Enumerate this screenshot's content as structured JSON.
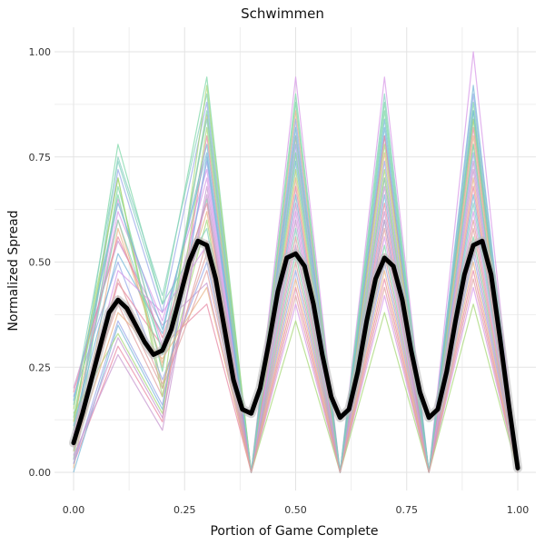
{
  "chart_data": {
    "type": "line",
    "title": "Schwimmen",
    "xlabel": "Portion of Game Complete",
    "ylabel": "Normalized Spread",
    "xlim": [
      0,
      1
    ],
    "ylim": [
      0,
      1
    ],
    "x_ticks": [
      "0.00",
      "0.25",
      "0.50",
      "0.75",
      "1.00"
    ],
    "y_ticks": [
      "0.00",
      "0.25",
      "0.50",
      "0.75",
      "1.00"
    ],
    "grid": true,
    "legend": "none",
    "x": [
      0.0,
      0.1,
      0.2,
      0.3,
      0.4,
      0.5,
      0.6,
      0.7,
      0.8,
      0.9,
      1.0
    ],
    "individual_series_count": 30,
    "individual_series_colors": [
      "#7fd8a8",
      "#9aa8e8",
      "#e88aa4",
      "#d89ae8",
      "#a8d878",
      "#e8b488",
      "#78b8d8",
      "#c898d0",
      "#88d0c0",
      "#e0a0a0"
    ],
    "individual_series_values": [
      [
        0.1,
        0.78,
        0.4,
        0.94,
        0.0,
        0.9,
        0.0,
        0.88,
        0.0,
        0.86,
        0.0
      ],
      [
        0.05,
        0.72,
        0.38,
        0.88,
        0.0,
        0.84,
        0.0,
        0.8,
        0.0,
        0.9,
        0.0
      ],
      [
        0.02,
        0.3,
        0.12,
        0.8,
        0.0,
        0.8,
        0.0,
        0.8,
        0.0,
        0.82,
        0.0
      ],
      [
        0.08,
        0.65,
        0.3,
        0.7,
        0.0,
        0.94,
        0.0,
        0.94,
        0.0,
        1.0,
        0.0
      ],
      [
        0.15,
        0.7,
        0.2,
        0.6,
        0.0,
        0.76,
        0.0,
        0.72,
        0.0,
        0.78,
        0.0
      ],
      [
        0.12,
        0.6,
        0.25,
        0.85,
        0.0,
        0.7,
        0.0,
        0.7,
        0.0,
        0.7,
        0.0
      ],
      [
        0.0,
        0.35,
        0.15,
        0.75,
        0.0,
        0.66,
        0.0,
        0.66,
        0.0,
        0.66,
        0.0
      ],
      [
        0.2,
        0.55,
        0.35,
        0.45,
        0.0,
        0.6,
        0.0,
        0.62,
        0.0,
        0.74,
        0.0
      ],
      [
        0.05,
        0.75,
        0.42,
        0.9,
        0.0,
        0.8,
        0.0,
        0.9,
        0.0,
        0.84,
        0.0
      ],
      [
        0.1,
        0.4,
        0.18,
        0.55,
        0.0,
        0.56,
        0.0,
        0.58,
        0.0,
        0.6,
        0.0
      ],
      [
        0.03,
        0.68,
        0.28,
        0.65,
        0.0,
        0.52,
        0.0,
        0.54,
        0.0,
        0.56,
        0.0
      ],
      [
        0.18,
        0.5,
        0.22,
        0.5,
        0.0,
        0.48,
        0.0,
        0.5,
        0.0,
        0.52,
        0.0
      ],
      [
        0.06,
        0.45,
        0.3,
        0.4,
        0.0,
        0.44,
        0.0,
        0.46,
        0.0,
        0.48,
        0.0
      ],
      [
        0.09,
        0.62,
        0.36,
        0.72,
        0.0,
        0.4,
        0.0,
        0.42,
        0.0,
        0.44,
        0.0
      ],
      [
        0.14,
        0.33,
        0.14,
        0.82,
        0.0,
        0.36,
        0.0,
        0.38,
        0.0,
        0.4,
        0.0
      ],
      [
        0.01,
        0.58,
        0.26,
        0.62,
        0.0,
        0.86,
        0.0,
        0.76,
        0.0,
        0.8,
        0.0
      ],
      [
        0.11,
        0.52,
        0.33,
        0.78,
        0.0,
        0.74,
        0.0,
        0.84,
        0.0,
        0.92,
        0.0
      ],
      [
        0.04,
        0.28,
        0.1,
        0.68,
        0.0,
        0.64,
        0.0,
        0.68,
        0.0,
        0.72,
        0.0
      ],
      [
        0.16,
        0.74,
        0.4,
        0.58,
        0.0,
        0.58,
        0.0,
        0.6,
        0.0,
        0.64,
        0.0
      ],
      [
        0.07,
        0.42,
        0.2,
        0.48,
        0.0,
        0.5,
        0.0,
        0.52,
        0.0,
        0.58,
        0.0
      ],
      [
        0.13,
        0.66,
        0.24,
        0.86,
        0.0,
        0.88,
        0.0,
        0.86,
        0.0,
        0.88,
        0.0
      ],
      [
        0.02,
        0.36,
        0.16,
        0.74,
        0.0,
        0.78,
        0.0,
        0.74,
        0.0,
        0.76,
        0.0
      ],
      [
        0.19,
        0.56,
        0.32,
        0.64,
        0.0,
        0.68,
        0.0,
        0.64,
        0.0,
        0.68,
        0.0
      ],
      [
        0.08,
        0.48,
        0.38,
        0.54,
        0.0,
        0.62,
        0.0,
        0.56,
        0.0,
        0.62,
        0.0
      ],
      [
        0.12,
        0.7,
        0.18,
        0.92,
        0.0,
        0.72,
        0.0,
        0.78,
        0.0,
        0.84,
        0.0
      ],
      [
        0.05,
        0.38,
        0.27,
        0.44,
        0.0,
        0.46,
        0.0,
        0.48,
        0.0,
        0.5,
        0.0
      ],
      [
        0.17,
        0.64,
        0.34,
        0.76,
        0.0,
        0.82,
        0.0,
        0.82,
        0.0,
        0.86,
        0.0
      ],
      [
        0.03,
        0.32,
        0.13,
        0.66,
        0.0,
        0.54,
        0.0,
        0.6,
        0.0,
        0.54,
        0.0
      ],
      [
        0.1,
        0.6,
        0.29,
        0.84,
        0.0,
        0.76,
        0.0,
        0.7,
        0.0,
        0.78,
        0.0
      ],
      [
        0.06,
        0.46,
        0.21,
        0.52,
        0.0,
        0.42,
        0.0,
        0.44,
        0.0,
        0.46,
        0.0
      ]
    ],
    "mean_series_x": [
      0.0,
      0.02,
      0.04,
      0.06,
      0.08,
      0.1,
      0.12,
      0.14,
      0.16,
      0.18,
      0.2,
      0.22,
      0.24,
      0.26,
      0.28,
      0.3,
      0.32,
      0.34,
      0.36,
      0.38,
      0.4,
      0.42,
      0.44,
      0.46,
      0.48,
      0.5,
      0.52,
      0.54,
      0.56,
      0.58,
      0.6,
      0.62,
      0.64,
      0.66,
      0.68,
      0.7,
      0.72,
      0.74,
      0.76,
      0.78,
      0.8,
      0.82,
      0.84,
      0.86,
      0.88,
      0.9,
      0.92,
      0.94,
      0.96,
      0.98,
      1.0
    ],
    "mean_series_values": [
      0.07,
      0.14,
      0.22,
      0.3,
      0.38,
      0.41,
      0.39,
      0.35,
      0.31,
      0.28,
      0.29,
      0.34,
      0.42,
      0.5,
      0.55,
      0.54,
      0.46,
      0.34,
      0.22,
      0.15,
      0.14,
      0.2,
      0.31,
      0.43,
      0.51,
      0.52,
      0.49,
      0.4,
      0.28,
      0.18,
      0.13,
      0.15,
      0.24,
      0.36,
      0.46,
      0.51,
      0.49,
      0.41,
      0.29,
      0.19,
      0.13,
      0.15,
      0.24,
      0.36,
      0.47,
      0.54,
      0.55,
      0.47,
      0.32,
      0.16,
      0.01
    ],
    "mean_series_color": "#000000"
  }
}
